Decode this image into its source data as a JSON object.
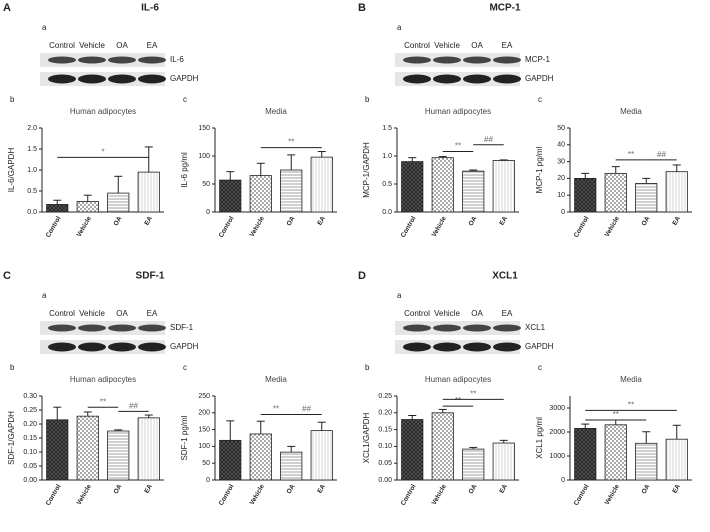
{
  "panels": [
    {
      "letter": "A",
      "title": "IL-6",
      "section": "a",
      "lanes": [
        "Control",
        "Vehicle",
        "OA",
        "EA"
      ],
      "blots": [
        "IL-6",
        "GAPDH"
      ]
    },
    {
      "letter": "B",
      "title": "MCP-1",
      "section": "a",
      "lanes": [
        "Control",
        "Vehicle",
        "OA",
        "EA"
      ],
      "blots": [
        "MCP-1",
        "GAPDH"
      ]
    },
    {
      "letter": "C",
      "title": "SDF-1",
      "section": "a",
      "lanes": [
        "Control",
        "Vehicle",
        "OA",
        "EA"
      ],
      "blots": [
        "SDF-1",
        "GAPDH"
      ]
    },
    {
      "letter": "D",
      "title": "XCL1",
      "section": "a",
      "lanes": [
        "Control",
        "Vehicle",
        "OA",
        "EA"
      ],
      "blots": [
        "XCL1",
        "GAPDH"
      ]
    }
  ],
  "chart_data": [
    {
      "type": "bar",
      "label": "b",
      "title": "Human adipocytes",
      "ylabel": "IL-6/GAPDH",
      "categories": [
        "Control",
        "Vehicle",
        "OA",
        "EA"
      ],
      "values": [
        0.18,
        0.25,
        0.45,
        0.95
      ],
      "errors": [
        0.1,
        0.15,
        0.4,
        0.6
      ],
      "ylim": [
        0,
        2.0
      ],
      "yticks": [
        {
          "value": 0,
          "label": "0.0"
        },
        {
          "value": 0.5,
          "label": "0.5"
        },
        {
          "value": 1.0,
          "label": "1.0"
        },
        {
          "value": 1.5,
          "label": "1.5"
        },
        {
          "value": 2.0,
          "label": "2.0"
        }
      ],
      "bar_styles": [
        "crosshatch",
        "checker",
        "horizontal",
        "vertical"
      ],
      "annotations": [
        {
          "text": "*",
          "from": "Control",
          "to": "EA",
          "y": 1.3
        }
      ]
    },
    {
      "type": "bar",
      "label": "c",
      "title": "Media",
      "ylabel": "IL-6 pg/ml",
      "categories": [
        "Control",
        "Vehicle",
        "OA",
        "EA"
      ],
      "values": [
        57,
        65,
        75,
        98
      ],
      "errors": [
        15,
        22,
        27,
        10
      ],
      "ylim": [
        0,
        150
      ],
      "yticks": [
        0,
        50,
        100,
        150
      ],
      "bar_styles": [
        "crosshatch",
        "checker",
        "horizontal",
        "vertical"
      ],
      "annotations": [
        {
          "text": "**",
          "from": "Vehicle",
          "to": "EA",
          "y": 115
        }
      ]
    },
    {
      "type": "bar",
      "label": "b",
      "title": "Human adipocytes",
      "ylabel": "MCP-1/GAPDH",
      "categories": [
        "Control",
        "Vehicle",
        "OA",
        "EA"
      ],
      "values": [
        0.9,
        0.97,
        0.73,
        0.92
      ],
      "errors": [
        0.07,
        0.02,
        0.02,
        0.01
      ],
      "ylim": [
        0,
        1.5
      ],
      "yticks": [
        {
          "value": 0,
          "label": "0.0"
        },
        {
          "value": 0.5,
          "label": "0.5"
        },
        {
          "value": 1.0,
          "label": "1.0"
        },
        {
          "value": 1.5,
          "label": "1.5"
        }
      ],
      "bar_styles": [
        "crosshatch",
        "checker",
        "horizontal",
        "vertical"
      ],
      "annotations": [
        {
          "text": "**",
          "from": "Vehicle",
          "to": "OA",
          "y": 1.08
        },
        {
          "text": "##",
          "from": "OA",
          "to": "EA",
          "y": 1.2
        }
      ]
    },
    {
      "type": "bar",
      "label": "c",
      "title": "Media",
      "ylabel": "MCP-1 pg/ml",
      "categories": [
        "Control",
        "Vehicle",
        "OA",
        "EA"
      ],
      "values": [
        20,
        23,
        17,
        24
      ],
      "errors": [
        3,
        4,
        3,
        4
      ],
      "ylim": [
        0,
        50
      ],
      "yticks": [
        0,
        10,
        20,
        30,
        40,
        50
      ],
      "bar_styles": [
        "crosshatch",
        "checker",
        "horizontal",
        "vertical"
      ],
      "annotations": [
        {
          "text": "**",
          "from": "Vehicle",
          "to": "OA",
          "y": 31
        },
        {
          "text": "##",
          "from": "OA",
          "to": "EA",
          "y": 31
        }
      ]
    },
    {
      "type": "bar",
      "label": "b",
      "title": "Human adipocytes",
      "ylabel": "SDF-1/GAPDH",
      "categories": [
        "Control",
        "Vehicle",
        "OA",
        "EA"
      ],
      "values": [
        0.215,
        0.228,
        0.175,
        0.222
      ],
      "errors": [
        0.045,
        0.015,
        0.004,
        0.01
      ],
      "ylim": [
        0,
        0.3
      ],
      "yticks": [
        {
          "value": 0,
          "label": "0.00"
        },
        {
          "value": 0.05,
          "label": "0.05"
        },
        {
          "value": 0.1,
          "label": "0.10"
        },
        {
          "value": 0.15,
          "label": "0.15"
        },
        {
          "value": 0.2,
          "label": "0.20"
        },
        {
          "value": 0.25,
          "label": "0.25"
        },
        {
          "value": 0.3,
          "label": "0.30"
        }
      ],
      "bar_styles": [
        "crosshatch",
        "checker",
        "horizontal",
        "vertical"
      ],
      "annotations": [
        {
          "text": "**",
          "from": "Vehicle",
          "to": "OA",
          "y": 0.26
        },
        {
          "text": "##",
          "from": "OA",
          "to": "EA",
          "y": 0.245
        }
      ]
    },
    {
      "type": "bar",
      "label": "c",
      "title": "Media",
      "ylabel": "SDF-1 pg/ml",
      "categories": [
        "Control",
        "Vehicle",
        "OA",
        "EA"
      ],
      "values": [
        118,
        137,
        83,
        147
      ],
      "errors": [
        58,
        38,
        17,
        25
      ],
      "ylim": [
        0,
        250
      ],
      "yticks": [
        0,
        50,
        100,
        150,
        200,
        250
      ],
      "bar_styles": [
        "crosshatch",
        "checker",
        "horizontal",
        "vertical"
      ],
      "annotations": [
        {
          "text": "**",
          "from": "Vehicle",
          "to": "OA",
          "y": 195
        },
        {
          "text": "##",
          "from": "OA",
          "to": "EA",
          "y": 195
        }
      ]
    },
    {
      "type": "bar",
      "label": "b",
      "title": "Human adipocytes",
      "ylabel": "XCL1/GAPDH",
      "categories": [
        "Control",
        "Vehicle",
        "OA",
        "EA"
      ],
      "values": [
        0.18,
        0.2,
        0.092,
        0.11
      ],
      "errors": [
        0.012,
        0.01,
        0.005,
        0.008
      ],
      "ylim": [
        0,
        0.25
      ],
      "yticks": [
        {
          "value": 0,
          "label": "0.00"
        },
        {
          "value": 0.05,
          "label": "0.05"
        },
        {
          "value": 0.1,
          "label": "0.10"
        },
        {
          "value": 0.15,
          "label": "0.15"
        },
        {
          "value": 0.2,
          "label": "0.20"
        },
        {
          "value": 0.25,
          "label": "0.25"
        }
      ],
      "bar_styles": [
        "crosshatch",
        "checker",
        "horizontal",
        "vertical"
      ],
      "annotations": [
        {
          "text": "**",
          "from": "Vehicle",
          "to": "OA",
          "y": 0.22
        },
        {
          "text": "**",
          "from": "Vehicle",
          "to": "EA",
          "y": 0.24
        }
      ]
    },
    {
      "type": "bar",
      "label": "c",
      "title": "Media",
      "ylabel": "XCL1 pg/ml",
      "categories": [
        "Control",
        "Vehicle",
        "OA",
        "EA"
      ],
      "values": [
        2150,
        2300,
        1530,
        1700
      ],
      "errors": [
        180,
        200,
        480,
        580
      ],
      "ylim": [
        0,
        3500
      ],
      "yticks": [
        0,
        1000,
        2000,
        3000
      ],
      "bar_styles": [
        "crosshatch",
        "checker",
        "horizontal",
        "vertical"
      ],
      "annotations": [
        {
          "text": "**",
          "from": "Control",
          "to": "OA",
          "y": 2500
        },
        {
          "text": "**",
          "from": "Control",
          "to": "EA",
          "y": 2900
        }
      ]
    }
  ]
}
